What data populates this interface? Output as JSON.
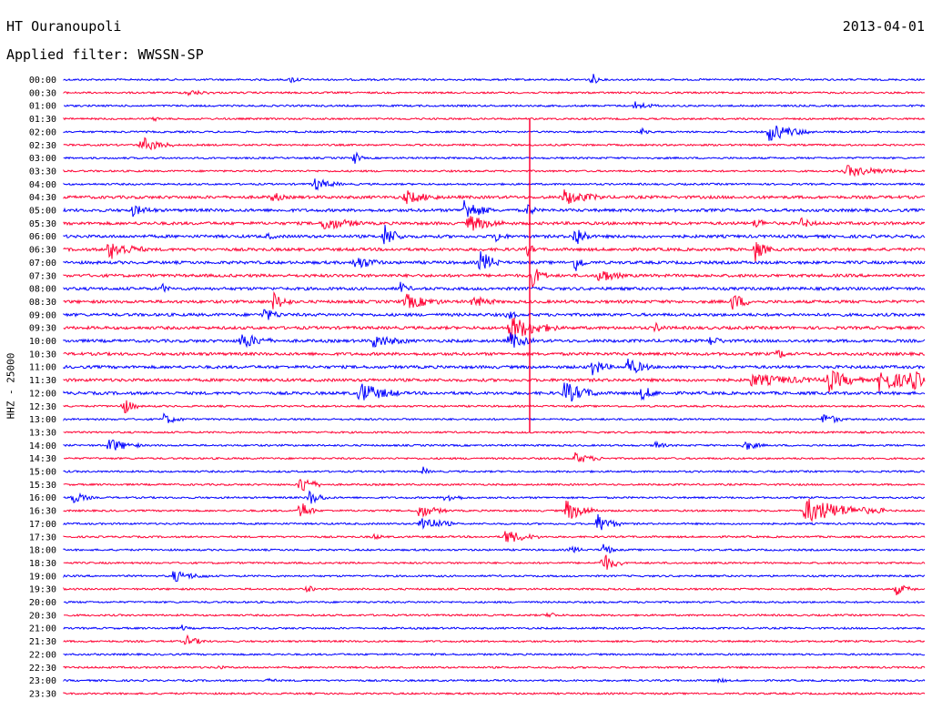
{
  "header": {
    "station": "HT Ouranoupoli",
    "date": "2013-04-01",
    "filter": "Applied filter: WWSSN-SP"
  },
  "chart_data": {
    "type": "line",
    "title": "HT Ouranoupoli",
    "ylabel": "HHZ - 25000",
    "colors": [
      "#0000ff",
      "#ff0033"
    ],
    "rows": [
      "00:00",
      "00:30",
      "01:00",
      "01:30",
      "02:00",
      "02:30",
      "03:00",
      "03:30",
      "04:00",
      "04:30",
      "05:00",
      "05:30",
      "06:00",
      "06:30",
      "07:00",
      "07:30",
      "08:00",
      "08:30",
      "09:00",
      "09:30",
      "10:00",
      "10:30",
      "11:00",
      "11:30",
      "12:00",
      "12:30",
      "13:00",
      "13:30",
      "14:00",
      "14:30",
      "15:00",
      "15:30",
      "16:00",
      "16:30",
      "17:00",
      "17:30",
      "18:00",
      "18:30",
      "19:00",
      "19:30",
      "20:00",
      "20:30",
      "21:00",
      "21:30",
      "22:00",
      "22:30",
      "23:00",
      "23:30"
    ],
    "grid": false
  }
}
